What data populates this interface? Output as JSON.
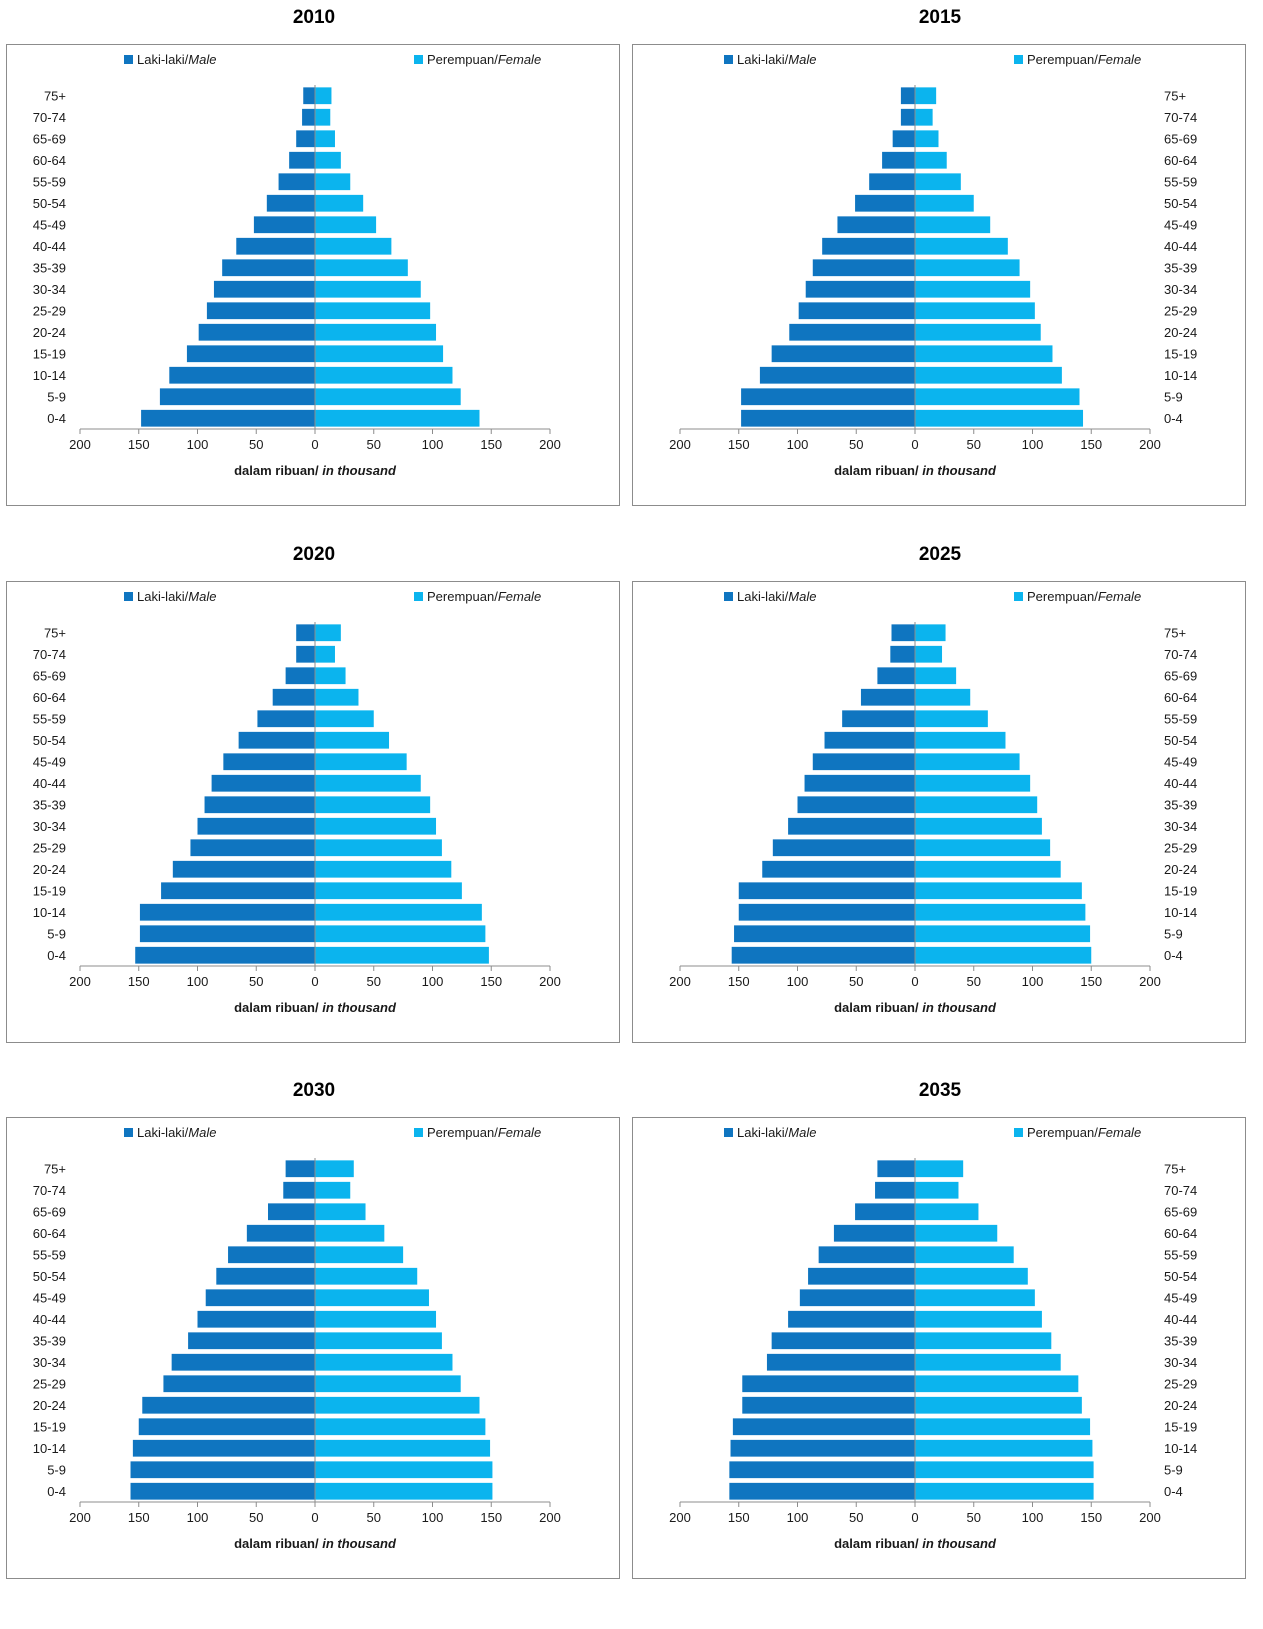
{
  "legend": {
    "male_label": "Laki-laki/",
    "male_italic": "Male",
    "female_label": "Perempuan/",
    "female_italic": "Female"
  },
  "colors": {
    "male": "#0f75c0",
    "female": "#0bb4ee",
    "axis": "#8c8c8c",
    "border": "#8c8c8c"
  },
  "chart_data": [
    {
      "type": "bar",
      "orientation": "population-pyramid",
      "title": "2010",
      "label_side": "left",
      "xlabel": "dalam ribuan/ ",
      "xlabel_italic": "in thousand",
      "xlim": [
        -200,
        200
      ],
      "xticks": [
        -200,
        -150,
        -100,
        -50,
        0,
        50,
        100,
        150,
        200
      ],
      "xtick_labels": [
        "200",
        "150",
        "100",
        "50",
        "0",
        "50",
        "100",
        "150",
        "200"
      ],
      "categories": [
        "0-4",
        "5-9",
        "10-14",
        "15-19",
        "20-24",
        "25-29",
        "30-34",
        "35-39",
        "40-44",
        "45-49",
        "50-54",
        "55-59",
        "60-64",
        "65-69",
        "70-74",
        "75+"
      ],
      "series": [
        {
          "name": "Laki-laki/Male",
          "values": [
            148,
            132,
            124,
            109,
            99,
            92,
            86,
            79,
            67,
            52,
            41,
            31,
            22,
            16,
            11,
            10
          ]
        },
        {
          "name": "Perempuan/Female",
          "values": [
            140,
            124,
            117,
            109,
            103,
            98,
            90,
            79,
            65,
            52,
            41,
            30,
            22,
            17,
            13,
            14
          ]
        }
      ]
    },
    {
      "type": "bar",
      "orientation": "population-pyramid",
      "title": "2015",
      "label_side": "right",
      "xlabel": "dalam ribuan/ ",
      "xlabel_italic": "in thousand",
      "xlim": [
        -200,
        200
      ],
      "xticks": [
        -200,
        -150,
        -100,
        -50,
        0,
        50,
        100,
        150,
        200
      ],
      "xtick_labels": [
        "200",
        "150",
        "100",
        "50",
        "0",
        "50",
        "100",
        "150",
        "200"
      ],
      "categories": [
        "0-4",
        "5-9",
        "10-14",
        "15-19",
        "20-24",
        "25-29",
        "30-34",
        "35-39",
        "40-44",
        "45-49",
        "50-54",
        "55-59",
        "60-64",
        "65-69",
        "70-74",
        "75+"
      ],
      "series": [
        {
          "name": "Laki-laki/Male",
          "values": [
            148,
            148,
            132,
            122,
            107,
            99,
            93,
            87,
            79,
            66,
            51,
            39,
            28,
            19,
            12,
            12
          ]
        },
        {
          "name": "Perempuan/Female",
          "values": [
            143,
            140,
            125,
            117,
            107,
            102,
            98,
            89,
            79,
            64,
            50,
            39,
            27,
            20,
            15,
            18
          ]
        }
      ]
    },
    {
      "type": "bar",
      "orientation": "population-pyramid",
      "title": "2020",
      "label_side": "left",
      "xlabel": "dalam ribuan/ ",
      "xlabel_italic": "in thousand",
      "xlim": [
        -200,
        200
      ],
      "xticks": [
        -200,
        -150,
        -100,
        -50,
        0,
        50,
        100,
        150,
        200
      ],
      "xtick_labels": [
        "200",
        "150",
        "100",
        "50",
        "0",
        "50",
        "100",
        "150",
        "200"
      ],
      "categories": [
        "0-4",
        "5-9",
        "10-14",
        "15-19",
        "20-24",
        "25-29",
        "30-34",
        "35-39",
        "40-44",
        "45-49",
        "50-54",
        "55-59",
        "60-64",
        "65-69",
        "70-74",
        "75+"
      ],
      "series": [
        {
          "name": "Laki-laki/Male",
          "values": [
            153,
            149,
            149,
            131,
            121,
            106,
            100,
            94,
            88,
            78,
            65,
            49,
            36,
            25,
            16,
            16
          ]
        },
        {
          "name": "Perempuan/Female",
          "values": [
            148,
            145,
            142,
            125,
            116,
            108,
            103,
            98,
            90,
            78,
            63,
            50,
            37,
            26,
            17,
            22
          ]
        }
      ]
    },
    {
      "type": "bar",
      "orientation": "population-pyramid",
      "title": "2025",
      "label_side": "right",
      "xlabel": "dalam ribuan/ ",
      "xlabel_italic": "in thousand",
      "xlim": [
        -200,
        200
      ],
      "xticks": [
        -200,
        -150,
        -100,
        -50,
        0,
        50,
        100,
        150,
        200
      ],
      "xtick_labels": [
        "200",
        "150",
        "100",
        "50",
        "0",
        "50",
        "100",
        "150",
        "200"
      ],
      "categories": [
        "0-4",
        "5-9",
        "10-14",
        "15-19",
        "20-24",
        "25-29",
        "30-34",
        "35-39",
        "40-44",
        "45-49",
        "50-54",
        "55-59",
        "60-64",
        "65-69",
        "70-74",
        "75+"
      ],
      "series": [
        {
          "name": "Laki-laki/Male",
          "values": [
            156,
            154,
            150,
            150,
            130,
            121,
            108,
            100,
            94,
            87,
            77,
            62,
            46,
            32,
            21,
            20
          ]
        },
        {
          "name": "Perempuan/Female",
          "values": [
            150,
            149,
            145,
            142,
            124,
            115,
            108,
            104,
            98,
            89,
            77,
            62,
            47,
            35,
            23,
            26
          ]
        }
      ]
    },
    {
      "type": "bar",
      "orientation": "population-pyramid",
      "title": "2030",
      "label_side": "left",
      "xlabel": "dalam ribuan/ ",
      "xlabel_italic": "in thousand",
      "xlim": [
        -200,
        200
      ],
      "xticks": [
        -200,
        -150,
        -100,
        -50,
        0,
        50,
        100,
        150,
        200
      ],
      "xtick_labels": [
        "200",
        "150",
        "100",
        "50",
        "0",
        "50",
        "100",
        "150",
        "200"
      ],
      "categories": [
        "0-4",
        "5-9",
        "10-14",
        "15-19",
        "20-24",
        "25-29",
        "30-34",
        "35-39",
        "40-44",
        "45-49",
        "50-54",
        "55-59",
        "60-64",
        "65-69",
        "70-74",
        "75+"
      ],
      "series": [
        {
          "name": "Laki-laki/Male",
          "values": [
            157,
            157,
            155,
            150,
            147,
            129,
            122,
            108,
            100,
            93,
            84,
            74,
            58,
            40,
            27,
            25
          ]
        },
        {
          "name": "Perempuan/Female",
          "values": [
            151,
            151,
            149,
            145,
            140,
            124,
            117,
            108,
            103,
            97,
            87,
            75,
            59,
            43,
            30,
            33
          ]
        }
      ]
    },
    {
      "type": "bar",
      "orientation": "population-pyramid",
      "title": "2035",
      "label_side": "right",
      "xlabel": "dalam ribuan/ ",
      "xlabel_italic": "in thousand",
      "xlim": [
        -200,
        200
      ],
      "xticks": [
        -200,
        -150,
        -100,
        -50,
        0,
        50,
        100,
        150,
        200
      ],
      "xtick_labels": [
        "200",
        "150",
        "100",
        "50",
        "0",
        "50",
        "100",
        "150",
        "200"
      ],
      "categories": [
        "0-4",
        "5-9",
        "10-14",
        "15-19",
        "20-24",
        "25-29",
        "30-34",
        "35-39",
        "40-44",
        "45-49",
        "50-54",
        "55-59",
        "60-64",
        "65-69",
        "70-74",
        "75+"
      ],
      "series": [
        {
          "name": "Laki-laki/Male",
          "values": [
            158,
            158,
            157,
            155,
            147,
            147,
            126,
            122,
            108,
            98,
            91,
            82,
            69,
            51,
            34,
            32
          ]
        },
        {
          "name": "Perempuan/Female",
          "values": [
            152,
            152,
            151,
            149,
            142,
            139,
            124,
            116,
            108,
            102,
            96,
            84,
            70,
            54,
            37,
            41
          ]
        }
      ]
    }
  ]
}
